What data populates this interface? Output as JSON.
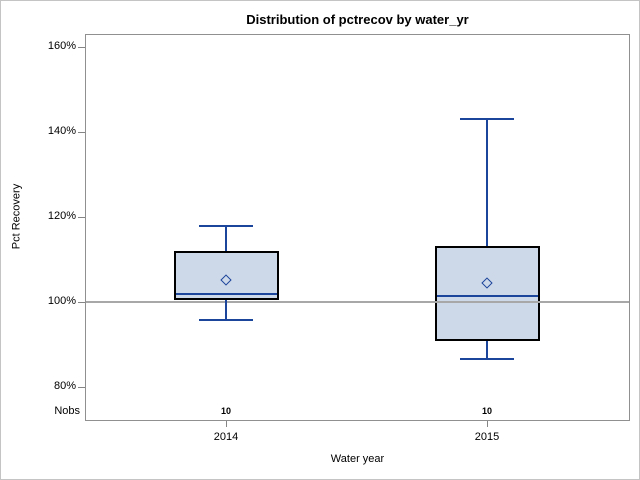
{
  "title": "Distribution of pctrecov by water_yr",
  "chart_data": {
    "type": "box",
    "title": "Distribution of pctrecov by water_yr",
    "xlabel": "Water year",
    "ylabel": "Pct Recovery",
    "categories": [
      "2014",
      "2015"
    ],
    "nobs_label": "Nobs",
    "y_axis": {
      "ticks": [
        {
          "value": 160,
          "label": "160%"
        },
        {
          "value": 140,
          "label": "140%"
        },
        {
          "value": 120,
          "label": "120%"
        },
        {
          "value": 100,
          "label": "100%"
        },
        {
          "value": 80,
          "label": "80%"
        }
      ],
      "ylim": [
        72,
        163
      ],
      "grid": false
    },
    "reference_line": 100,
    "legend": "none",
    "series": [
      {
        "category": "2014",
        "nobs": "10",
        "whisker_low": 95.7,
        "q1": 100.4,
        "median": 102.0,
        "q3": 112.0,
        "whisker_high": 118.0,
        "mean": 105.2
      },
      {
        "category": "2015",
        "nobs": "10",
        "whisker_low": 86.5,
        "q1": 90.8,
        "median": 101.3,
        "q3": 113.2,
        "whisker_high": 143.0,
        "mean": 104.5
      }
    ]
  },
  "colors": {
    "box_fill": "#cdd8e8",
    "box_border": "#000000",
    "line_blue": "#1b449b",
    "reference_line": "#a8a8a8",
    "axis_gray": "#858585",
    "text": "#000000"
  }
}
